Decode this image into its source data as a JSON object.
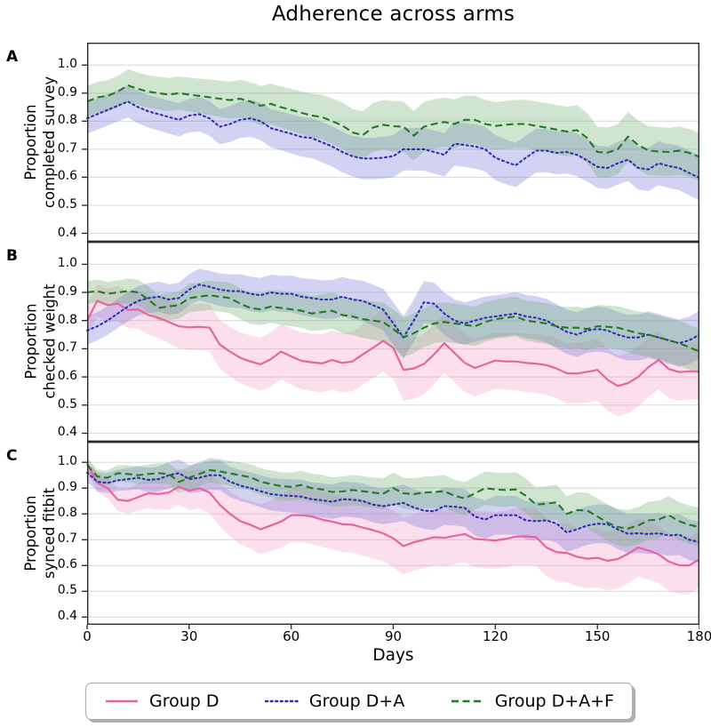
{
  "chart_data": {
    "type": "line",
    "title": "Adherence across arms",
    "x_start": 0,
    "x_step": 3,
    "x_end": 180,
    "x_axis": {
      "label": "Days",
      "ticks": [
        "0",
        "30",
        "60",
        "90",
        "120",
        "150",
        "180"
      ]
    },
    "y_axis": {
      "ticks": [
        "1.0",
        "0.9",
        "0.8",
        "0.7",
        "0.6",
        "0.5",
        "0.4"
      ],
      "lim": [
        0.37,
        1.08
      ],
      "grid": "horizontal"
    },
    "legend": {
      "position": "bottom",
      "entries": [
        {
          "label": "Group D",
          "style": "solid",
          "color": "#e8639f"
        },
        {
          "label": "Group D+A",
          "style": "dotted",
          "color": "#2f2fb3"
        },
        {
          "label": "Group D+A+F",
          "style": "dashed",
          "color": "#1f7d1f"
        }
      ]
    },
    "panels": [
      {
        "letter": "A",
        "ylabel": "Proportion\ncompleted survey",
        "series": [
          {
            "name": "Group D+A",
            "color": "#2f2fb3",
            "line_style": "dotted",
            "band_color": "rgba(105,105,215,0.30)",
            "band_halfwidth_by_30d": [
              0.055,
              0.06,
              0.07,
              0.075,
              0.08,
              0.075,
              0.08
            ],
            "values": [
              0.81,
              0.825,
              0.84,
              0.855,
              0.87,
              0.85,
              0.835,
              0.825,
              0.815,
              0.805,
              0.82,
              0.825,
              0.81,
              0.78,
              0.79,
              0.805,
              0.81,
              0.8,
              0.775,
              0.765,
              0.755,
              0.744,
              0.74,
              0.725,
              0.71,
              0.69,
              0.675,
              0.667,
              0.667,
              0.67,
              0.675,
              0.7,
              0.7,
              0.7,
              0.69,
              0.68,
              0.72,
              0.715,
              0.71,
              0.7,
              0.67,
              0.655,
              0.643,
              0.67,
              0.695,
              0.695,
              0.687,
              0.69,
              0.68,
              0.66,
              0.637,
              0.633,
              0.65,
              0.663,
              0.633,
              0.628,
              0.65,
              0.64,
              0.633,
              0.615,
              0.598
            ]
          },
          {
            "name": "Group D+A+F",
            "color": "#1f7d1f",
            "line_style": "dashed",
            "band_color": "rgba(110,175,110,0.32)",
            "band_halfwidth_by_30d": [
              0.055,
              0.06,
              0.075,
              0.09,
              0.085,
              0.09,
              0.085
            ],
            "values": [
              0.87,
              0.885,
              0.89,
              0.905,
              0.928,
              0.915,
              0.905,
              0.9,
              0.895,
              0.9,
              0.895,
              0.89,
              0.885,
              0.88,
              0.875,
              0.88,
              0.87,
              0.855,
              0.862,
              0.85,
              0.84,
              0.83,
              0.82,
              0.815,
              0.8,
              0.785,
              0.76,
              0.75,
              0.777,
              0.787,
              0.782,
              0.78,
              0.748,
              0.78,
              0.79,
              0.797,
              0.79,
              0.805,
              0.805,
              0.79,
              0.783,
              0.787,
              0.79,
              0.79,
              0.783,
              0.777,
              0.77,
              0.763,
              0.768,
              0.74,
              0.69,
              0.688,
              0.7,
              0.745,
              0.715,
              0.695,
              0.692,
              0.69,
              0.695,
              0.687,
              0.672
            ]
          }
        ]
      },
      {
        "letter": "B",
        "ylabel": "Proportion\nchecked weight",
        "series": [
          {
            "name": "Group D",
            "color": "#e8639f",
            "line_style": "solid",
            "band_color": "rgba(240,140,185,0.28)",
            "band_halfwidth_by_30d": [
              0.055,
              0.08,
              0.1,
              0.11,
              0.1,
              0.11,
              0.1
            ],
            "values": [
              0.8,
              0.87,
              0.855,
              0.86,
              0.838,
              0.84,
              0.82,
              0.81,
              0.795,
              0.78,
              0.776,
              0.778,
              0.775,
              0.715,
              0.69,
              0.668,
              0.655,
              0.645,
              0.663,
              0.69,
              0.673,
              0.657,
              0.652,
              0.648,
              0.66,
              0.65,
              0.655,
              0.68,
              0.703,
              0.728,
              0.703,
              0.625,
              0.63,
              0.646,
              0.68,
              0.72,
              0.685,
              0.65,
              0.632,
              0.645,
              0.658,
              0.655,
              0.655,
              0.65,
              0.647,
              0.642,
              0.63,
              0.613,
              0.612,
              0.618,
              0.625,
              0.59,
              0.568,
              0.578,
              0.6,
              0.635,
              0.66,
              0.628,
              0.617,
              0.62,
              0.62
            ]
          },
          {
            "name": "Group D+A",
            "color": "#2f2fb3",
            "line_style": "dotted",
            "band_color": "rgba(105,105,215,0.30)",
            "band_halfwidth_by_30d": [
              0.05,
              0.055,
              0.065,
              0.075,
              0.075,
              0.08,
              0.085
            ],
            "values": [
              0.765,
              0.78,
              0.8,
              0.825,
              0.85,
              0.87,
              0.88,
              0.885,
              0.875,
              0.88,
              0.91,
              0.928,
              0.92,
              0.91,
              0.905,
              0.905,
              0.895,
              0.89,
              0.9,
              0.895,
              0.895,
              0.885,
              0.88,
              0.875,
              0.875,
              0.885,
              0.875,
              0.87,
              0.855,
              0.84,
              0.79,
              0.74,
              0.8,
              0.865,
              0.86,
              0.825,
              0.8,
              0.79,
              0.8,
              0.81,
              0.815,
              0.82,
              0.825,
              0.815,
              0.81,
              0.8,
              0.78,
              0.76,
              0.75,
              0.765,
              0.77,
              0.765,
              0.75,
              0.74,
              0.74,
              0.75,
              0.74,
              0.73,
              0.72,
              0.73,
              0.75
            ]
          },
          {
            "name": "Group D+A+F",
            "color": "#1f7d1f",
            "line_style": "dashed",
            "band_color": "rgba(110,175,110,0.32)",
            "band_halfwidth_by_30d": [
              0.04,
              0.05,
              0.06,
              0.07,
              0.07,
              0.075,
              0.08
            ],
            "values": [
              0.9,
              0.905,
              0.895,
              0.9,
              0.905,
              0.9,
              0.875,
              0.845,
              0.85,
              0.855,
              0.88,
              0.885,
              0.89,
              0.885,
              0.88,
              0.86,
              0.845,
              0.84,
              0.85,
              0.845,
              0.84,
              0.835,
              0.825,
              0.83,
              0.835,
              0.82,
              0.815,
              0.805,
              0.8,
              0.795,
              0.77,
              0.74,
              0.755,
              0.775,
              0.79,
              0.795,
              0.79,
              0.785,
              0.78,
              0.795,
              0.805,
              0.81,
              0.815,
              0.8,
              0.795,
              0.79,
              0.78,
              0.775,
              0.775,
              0.77,
              0.78,
              0.778,
              0.775,
              0.765,
              0.755,
              0.75,
              0.74,
              0.73,
              0.72,
              0.705,
              0.69
            ]
          }
        ]
      },
      {
        "letter": "C",
        "ylabel": "Proportion\nsynced fitbit",
        "series": [
          {
            "name": "Group D",
            "color": "#e8639f",
            "line_style": "solid",
            "band_color": "rgba(240,140,185,0.28)",
            "band_halfwidth_by_30d": [
              0.03,
              0.075,
              0.105,
              0.11,
              0.11,
              0.115,
              0.11
            ],
            "values": [
              0.995,
              0.92,
              0.9,
              0.855,
              0.85,
              0.865,
              0.88,
              0.877,
              0.883,
              0.905,
              0.89,
              0.9,
              0.883,
              0.835,
              0.8,
              0.772,
              0.758,
              0.74,
              0.755,
              0.77,
              0.795,
              0.795,
              0.79,
              0.778,
              0.77,
              0.76,
              0.758,
              0.747,
              0.737,
              0.725,
              0.705,
              0.675,
              0.69,
              0.7,
              0.71,
              0.707,
              0.715,
              0.722,
              0.703,
              0.7,
              0.697,
              0.703,
              0.712,
              0.713,
              0.71,
              0.67,
              0.652,
              0.649,
              0.634,
              0.626,
              0.63,
              0.618,
              0.625,
              0.645,
              0.67,
              0.658,
              0.643,
              0.615,
              0.601,
              0.6,
              0.625
            ]
          },
          {
            "name": "Group D+A",
            "color": "#2f2fb3",
            "line_style": "dotted",
            "band_color": "rgba(105,105,215,0.30)",
            "band_halfwidth_by_30d": [
              0.035,
              0.055,
              0.065,
              0.07,
              0.075,
              0.075,
              0.08
            ],
            "values": [
              0.96,
              0.925,
              0.92,
              0.93,
              0.935,
              0.94,
              0.932,
              0.935,
              0.95,
              0.958,
              0.935,
              0.94,
              0.95,
              0.95,
              0.925,
              0.91,
              0.9,
              0.888,
              0.877,
              0.872,
              0.87,
              0.867,
              0.857,
              0.853,
              0.847,
              0.857,
              0.855,
              0.85,
              0.836,
              0.83,
              0.836,
              0.843,
              0.825,
              0.813,
              0.81,
              0.83,
              0.828,
              0.823,
              0.79,
              0.778,
              0.795,
              0.795,
              0.795,
              0.775,
              0.772,
              0.775,
              0.763,
              0.728,
              0.74,
              0.755,
              0.762,
              0.76,
              0.74,
              0.723,
              0.725,
              0.722,
              0.725,
              0.716,
              0.72,
              0.7,
              0.69
            ]
          },
          {
            "name": "Group D+A+F",
            "color": "#1f7d1f",
            "line_style": "dashed",
            "band_color": "rgba(110,175,110,0.32)",
            "band_halfwidth_by_30d": [
              0.025,
              0.045,
              0.055,
              0.06,
              0.065,
              0.07,
              0.075
            ],
            "values": [
              0.99,
              0.945,
              0.94,
              0.958,
              0.955,
              0.95,
              0.955,
              0.958,
              0.955,
              0.924,
              0.94,
              0.955,
              0.97,
              0.965,
              0.957,
              0.95,
              0.942,
              0.925,
              0.916,
              0.908,
              0.905,
              0.912,
              0.9,
              0.895,
              0.885,
              0.887,
              0.893,
              0.888,
              0.883,
              0.878,
              0.9,
              0.88,
              0.877,
              0.883,
              0.885,
              0.888,
              0.87,
              0.86,
              0.88,
              0.9,
              0.895,
              0.893,
              0.895,
              0.87,
              0.836,
              0.84,
              0.845,
              0.8,
              0.815,
              0.813,
              0.79,
              0.766,
              0.749,
              0.743,
              0.755,
              0.775,
              0.778,
              0.795,
              0.772,
              0.758,
              0.749
            ]
          }
        ]
      }
    ]
  }
}
